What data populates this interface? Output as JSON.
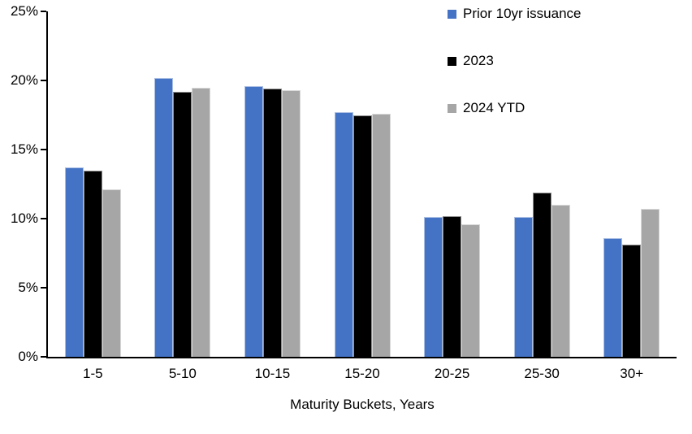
{
  "chart_data": {
    "type": "bar",
    "title": "",
    "xlabel": "Maturity Buckets, Years",
    "ylabel": "",
    "ylim": [
      0,
      25
    ],
    "ytick_step": 5,
    "ytick_labels": [
      "0%",
      "5%",
      "10%",
      "15%",
      "20%",
      "25%"
    ],
    "categories": [
      "1-5",
      "5-10",
      "10-15",
      "15-20",
      "20-25",
      "25-30",
      "30+"
    ],
    "series": [
      {
        "name": "Prior 10yr issuance",
        "color": "#4472C4",
        "values": [
          13.7,
          20.2,
          19.6,
          17.7,
          10.1,
          10.1,
          8.6
        ]
      },
      {
        "name": "2023",
        "color": "#000000",
        "values": [
          13.5,
          19.2,
          19.4,
          17.5,
          10.2,
          11.9,
          8.1
        ]
      },
      {
        "name": "2024 YTD",
        "color": "#A6A6A6",
        "values": [
          12.1,
          19.5,
          19.3,
          17.6,
          9.6,
          11.0,
          10.7
        ]
      }
    ],
    "legend_position": "top-right",
    "grid": false,
    "background": "#ffffff"
  }
}
